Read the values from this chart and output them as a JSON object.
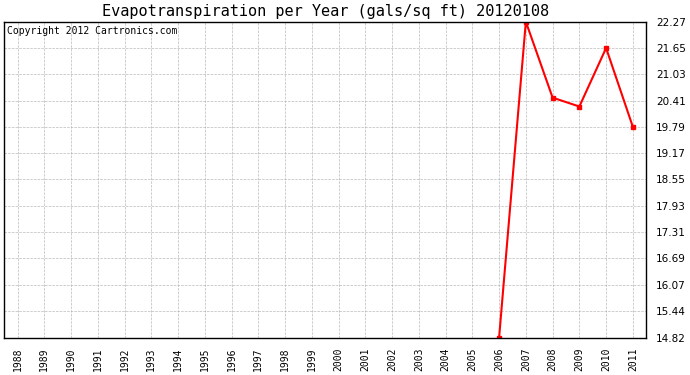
{
  "title": "Evapotranspiration per Year (gals/sq ft) 20120108",
  "copyright": "Copyright 2012 Cartronics.com",
  "x_years": [
    1988,
    1989,
    1990,
    1991,
    1992,
    1993,
    1994,
    1995,
    1996,
    1997,
    1998,
    1999,
    2000,
    2001,
    2002,
    2003,
    2004,
    2005,
    2006,
    2007,
    2008,
    2009,
    2010,
    2011
  ],
  "y_values": [
    null,
    null,
    null,
    null,
    null,
    null,
    null,
    null,
    null,
    null,
    null,
    null,
    null,
    null,
    null,
    null,
    null,
    null,
    14.82,
    22.27,
    20.48,
    20.27,
    21.65,
    19.79
  ],
  "yticks": [
    14.82,
    15.44,
    16.07,
    16.69,
    17.31,
    17.93,
    18.55,
    19.17,
    19.79,
    20.41,
    21.03,
    21.65,
    22.27
  ],
  "ymin": 14.82,
  "ymax": 22.27,
  "line_color": "#ff0000",
  "marker": "s",
  "marker_size": 3,
  "bg_color": "#ffffff",
  "grid_color": "#aaaaaa",
  "title_fontsize": 11,
  "copyright_fontsize": 7,
  "tick_fontsize": 7,
  "ytick_fontsize": 7.5
}
